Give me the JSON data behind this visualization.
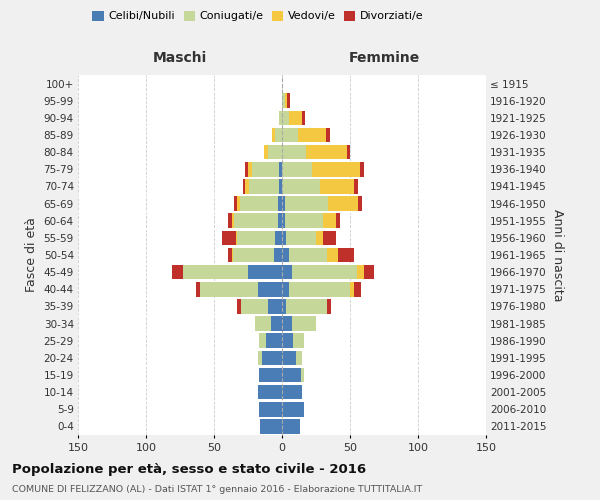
{
  "age_groups": [
    "0-4",
    "5-9",
    "10-14",
    "15-19",
    "20-24",
    "25-29",
    "30-34",
    "35-39",
    "40-44",
    "45-49",
    "50-54",
    "55-59",
    "60-64",
    "65-69",
    "70-74",
    "75-79",
    "80-84",
    "85-89",
    "90-94",
    "95-99",
    "100+"
  ],
  "birth_years": [
    "2011-2015",
    "2006-2010",
    "2001-2005",
    "1996-2000",
    "1991-1995",
    "1986-1990",
    "1981-1985",
    "1976-1980",
    "1971-1975",
    "1966-1970",
    "1961-1965",
    "1956-1960",
    "1951-1955",
    "1946-1950",
    "1941-1945",
    "1936-1940",
    "1931-1935",
    "1926-1930",
    "1921-1925",
    "1916-1920",
    "≤ 1915"
  ],
  "male": {
    "celibi": [
      16,
      17,
      18,
      17,
      15,
      12,
      8,
      10,
      18,
      25,
      6,
      5,
      3,
      3,
      2,
      2,
      0,
      0,
      0,
      0,
      0
    ],
    "coniugati": [
      0,
      0,
      0,
      0,
      3,
      5,
      12,
      20,
      42,
      48,
      30,
      28,
      32,
      28,
      22,
      20,
      10,
      5,
      2,
      0,
      0
    ],
    "vedovi": [
      0,
      0,
      0,
      0,
      0,
      0,
      0,
      0,
      0,
      0,
      1,
      1,
      2,
      2,
      3,
      3,
      3,
      2,
      0,
      0,
      0
    ],
    "divorziati": [
      0,
      0,
      0,
      0,
      0,
      0,
      0,
      3,
      3,
      8,
      3,
      10,
      3,
      2,
      2,
      2,
      0,
      0,
      0,
      0,
      0
    ]
  },
  "female": {
    "nubili": [
      13,
      16,
      15,
      14,
      10,
      8,
      7,
      3,
      5,
      7,
      5,
      3,
      2,
      2,
      0,
      0,
      0,
      0,
      0,
      0,
      0
    ],
    "coniugate": [
      0,
      0,
      0,
      2,
      5,
      8,
      18,
      30,
      45,
      48,
      28,
      22,
      28,
      32,
      28,
      22,
      18,
      12,
      5,
      2,
      0
    ],
    "vedove": [
      0,
      0,
      0,
      0,
      0,
      0,
      0,
      0,
      3,
      5,
      8,
      5,
      10,
      22,
      25,
      35,
      30,
      20,
      10,
      2,
      0
    ],
    "divorziate": [
      0,
      0,
      0,
      0,
      0,
      0,
      0,
      3,
      5,
      8,
      12,
      10,
      3,
      3,
      3,
      3,
      2,
      3,
      2,
      2,
      0
    ]
  },
  "colors": {
    "celibi": "#4a7db5",
    "coniugati": "#c5d89a",
    "vedovi": "#f5c842",
    "divorziati": "#c0302a"
  },
  "xlim": 150,
  "title": "Popolazione per età, sesso e stato civile - 2016",
  "subtitle": "COMUNE DI FELIZZANO (AL) - Dati ISTAT 1° gennaio 2016 - Elaborazione TUTTITALIA.IT",
  "ylabel_left": "Fasce di età",
  "ylabel_right": "Anni di nascita",
  "xlabel_left": "Maschi",
  "xlabel_right": "Femmine",
  "bg_color": "#f0f0f0",
  "plot_bg_color": "#ffffff"
}
